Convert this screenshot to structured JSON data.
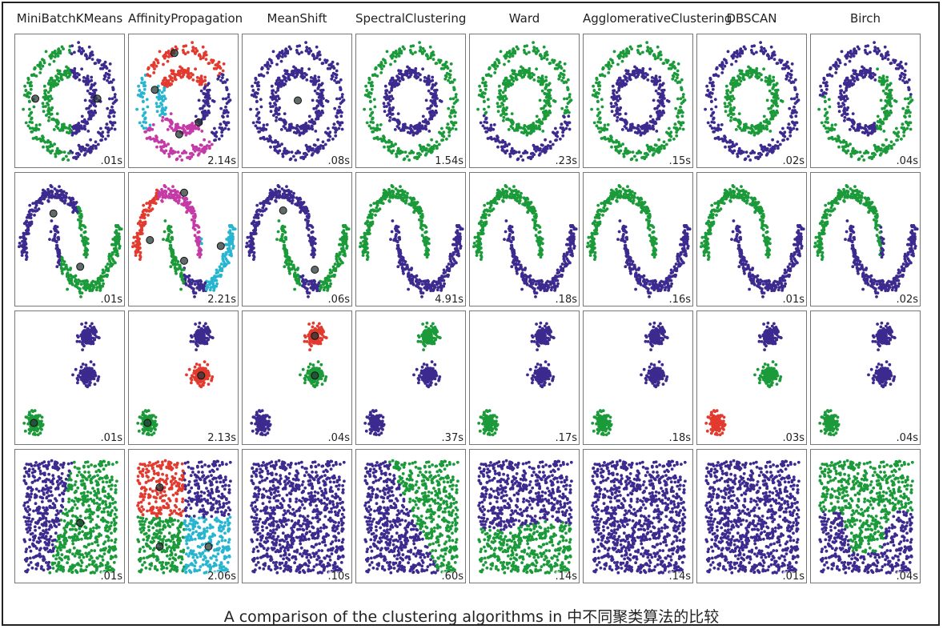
{
  "caption": "A comparison of the clustering algorithms in 中不同聚类算法的比较",
  "colors": {
    "purple": "#3d2a8f",
    "green": "#1b9a3a",
    "red": "#e23a2e",
    "cyan": "#27b5d0",
    "magenta": "#c43aa6"
  },
  "chart_data": {
    "type": "scatter",
    "grid": false,
    "algorithms": [
      "MiniBatchKMeans",
      "AffinityPropagation",
      "MeanShift",
      "SpectralClustering",
      "Ward",
      "AgglomerativeClustering",
      "DBSCAN",
      "Birch"
    ],
    "datasets": [
      "noisy_circles",
      "noisy_moons",
      "blobs",
      "no_structure"
    ],
    "times": [
      [
        ".01s",
        "2.14s",
        ".08s",
        "1.54s",
        ".23s",
        ".15s",
        ".02s",
        ".04s"
      ],
      [
        ".01s",
        "2.21s",
        ".06s",
        "4.91s",
        ".18s",
        ".16s",
        ".01s",
        ".02s"
      ],
      [
        ".01s",
        "2.13s",
        ".04s",
        ".37s",
        ".17s",
        ".18s",
        ".03s",
        ".04s"
      ],
      [
        ".01s",
        "2.06s",
        ".10s",
        ".60s",
        ".14s",
        ".14s",
        ".01s",
        ".04s"
      ]
    ]
  }
}
